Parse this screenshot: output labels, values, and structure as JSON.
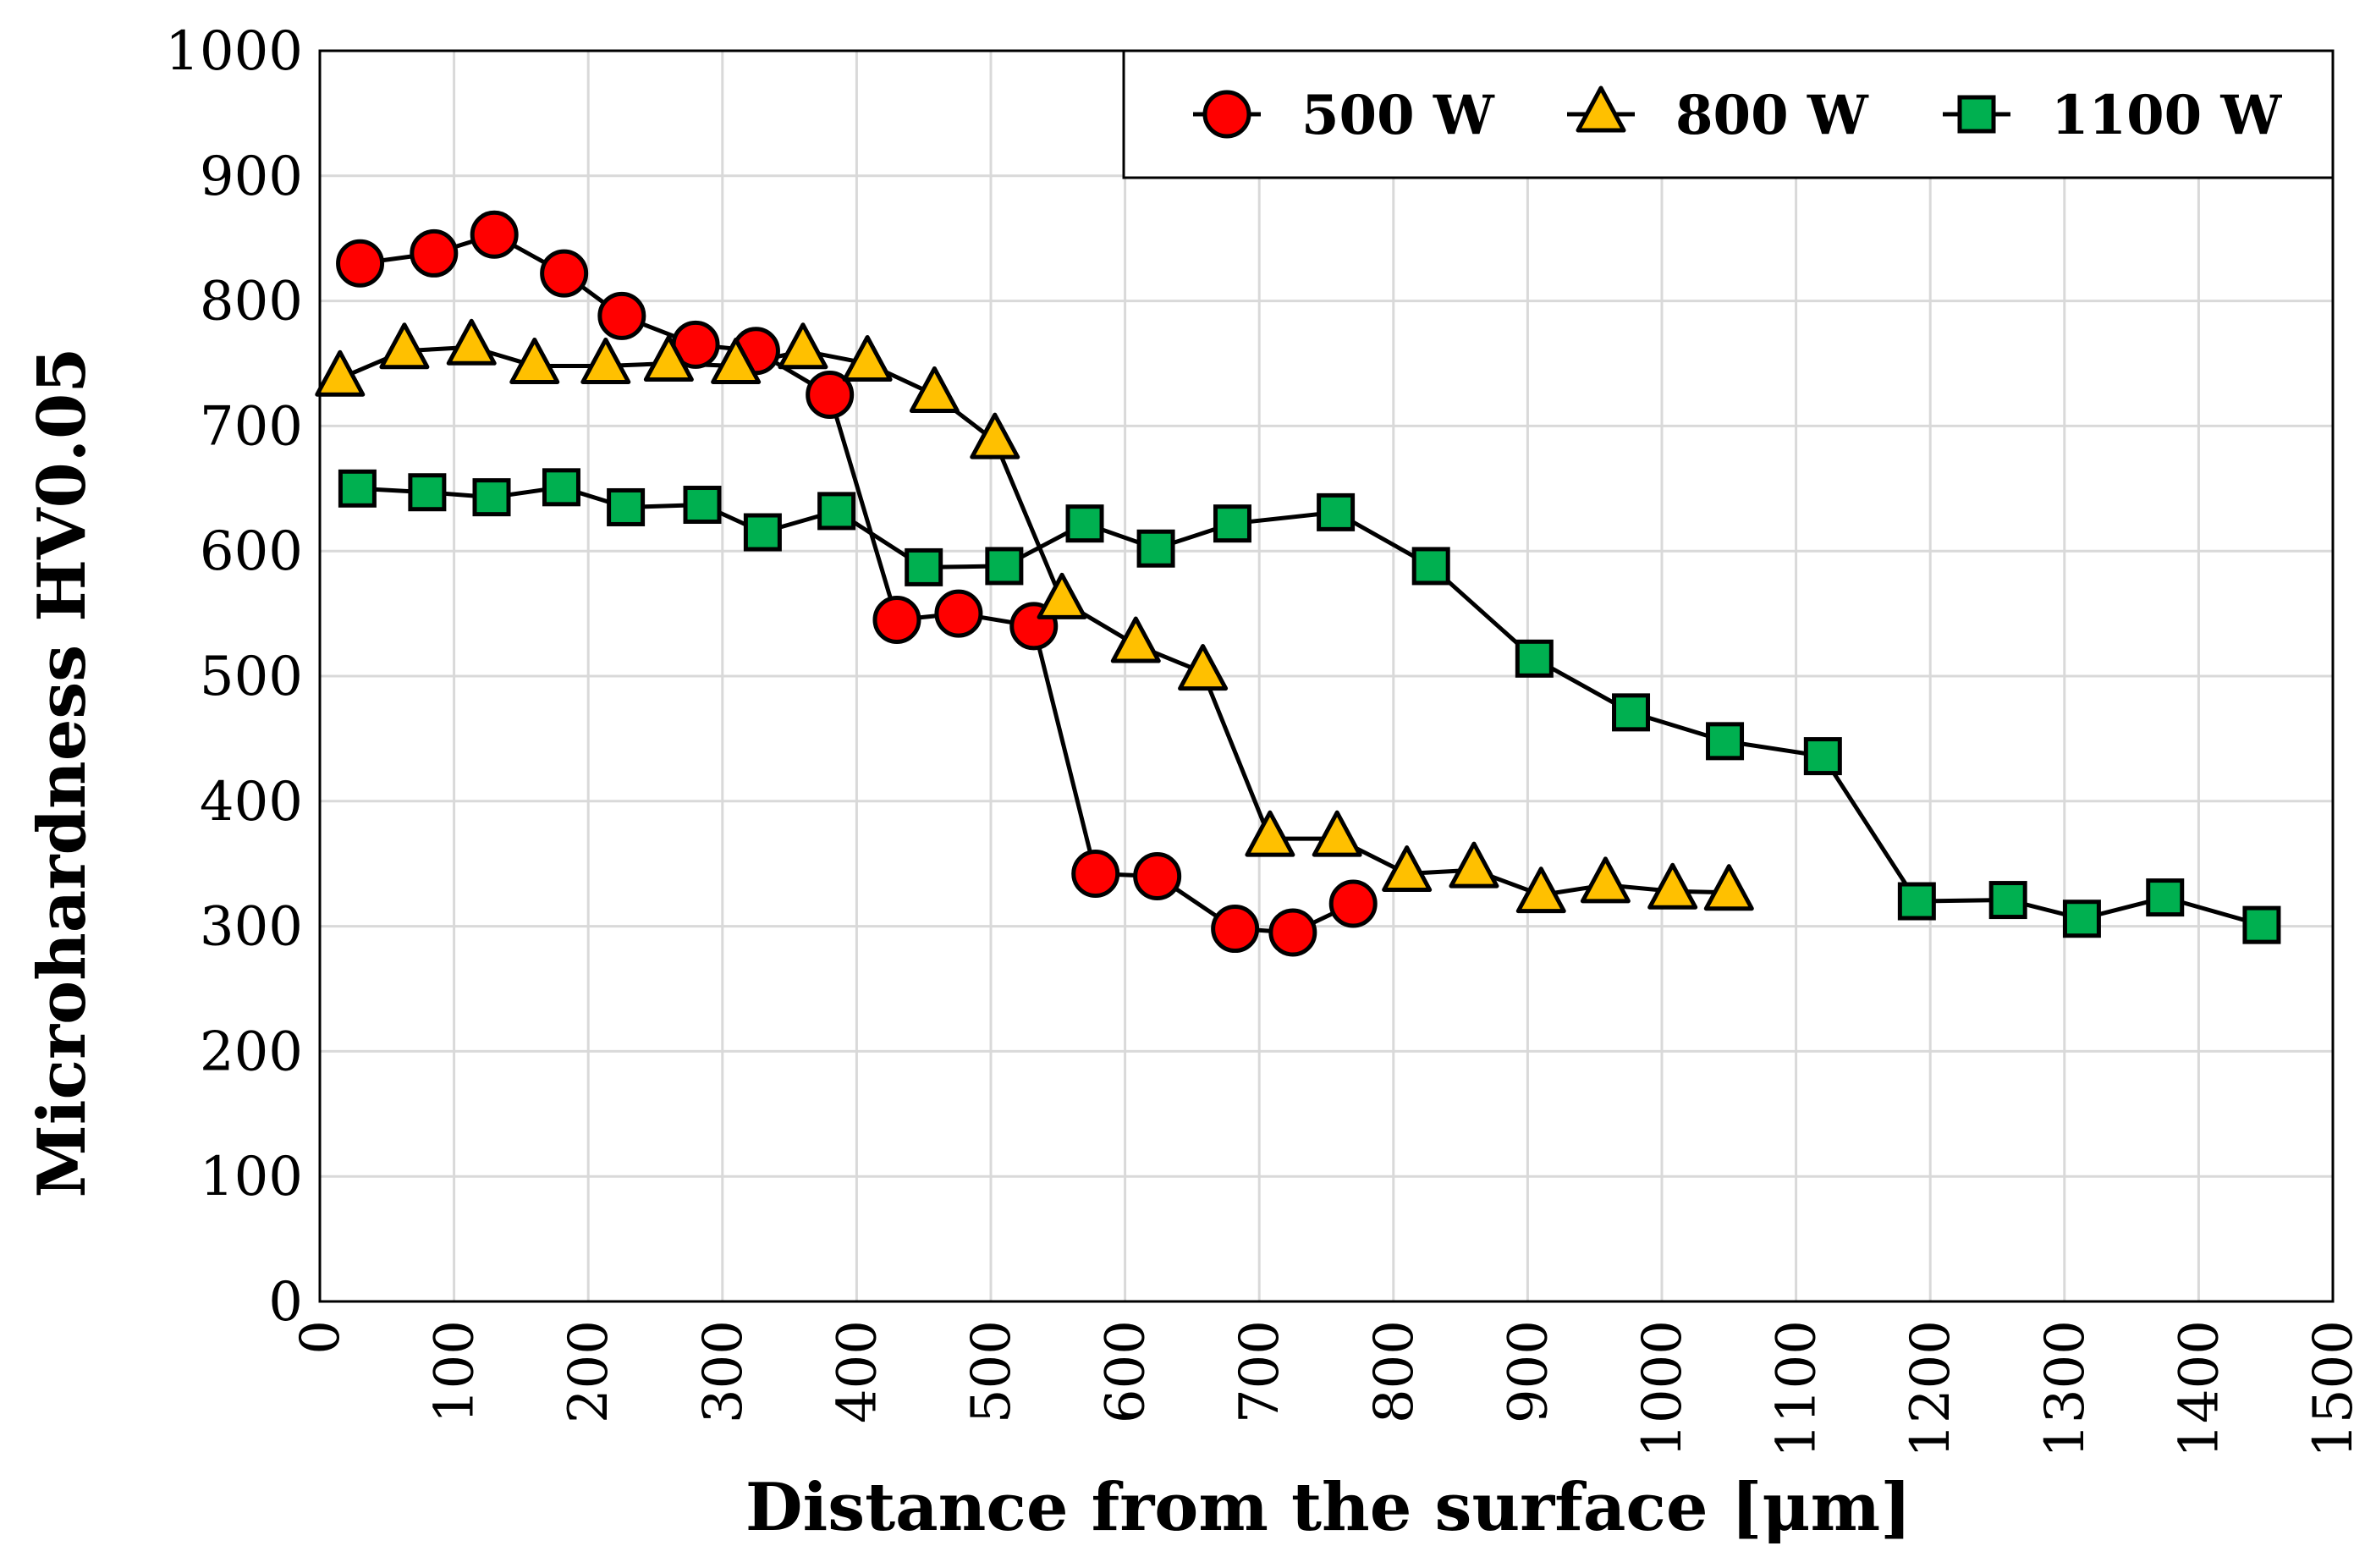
{
  "chart_data": {
    "type": "line",
    "title": "",
    "xlabel": "Distance from the surface [μm]",
    "ylabel": "Microhardness HV0.05",
    "xlim": [
      0,
      1500
    ],
    "ylim": [
      0,
      1000
    ],
    "x_ticks": [
      "0",
      "100",
      "200",
      "300",
      "400",
      "500",
      "600",
      "700",
      "800",
      "900",
      "1000",
      "1100",
      "1200",
      "1300",
      "1400",
      "1500"
    ],
    "y_ticks": [
      "0",
      "100",
      "200",
      "300",
      "400",
      "500",
      "600",
      "700",
      "800",
      "900",
      "1000"
    ],
    "grid": true,
    "legend_position": "top-right",
    "series": [
      {
        "name": "500 W",
        "marker": "circle",
        "color": "#ff0000",
        "x": [
          30,
          85,
          130,
          182,
          225,
          280,
          325,
          380,
          430,
          476,
          532,
          578,
          624,
          682,
          725,
          770
        ],
        "y": [
          830,
          838,
          853,
          822,
          788,
          765,
          760,
          725,
          545,
          550,
          540,
          342,
          340,
          298,
          295,
          318
        ]
      },
      {
        "name": "800 W",
        "marker": "triangle",
        "color": "#ffc000",
        "x": [
          15,
          63,
          113,
          160,
          213,
          260,
          310,
          360,
          408,
          458,
          503,
          553,
          608,
          658,
          708,
          758,
          810,
          860,
          910,
          958,
          1008,
          1050
        ],
        "y": [
          738,
          760,
          763,
          748,
          748,
          750,
          748,
          760,
          750,
          725,
          688,
          560,
          525,
          503,
          370,
          370,
          342,
          345,
          325,
          333,
          328,
          327
        ]
      },
      {
        "name": "1100 W",
        "marker": "square",
        "color": "#00b050",
        "x": [
          28,
          80,
          128,
          180,
          228,
          285,
          330,
          385,
          450,
          510,
          570,
          623,
          680,
          757,
          828,
          905,
          977,
          1047,
          1120,
          1190,
          1258,
          1313,
          1375,
          1447
        ],
        "y": [
          650,
          647,
          643,
          651,
          635,
          637,
          615,
          632,
          587,
          588,
          622,
          602,
          622,
          631,
          588,
          514,
          471,
          448,
          436,
          320,
          321,
          306,
          323,
          301
        ]
      }
    ]
  }
}
